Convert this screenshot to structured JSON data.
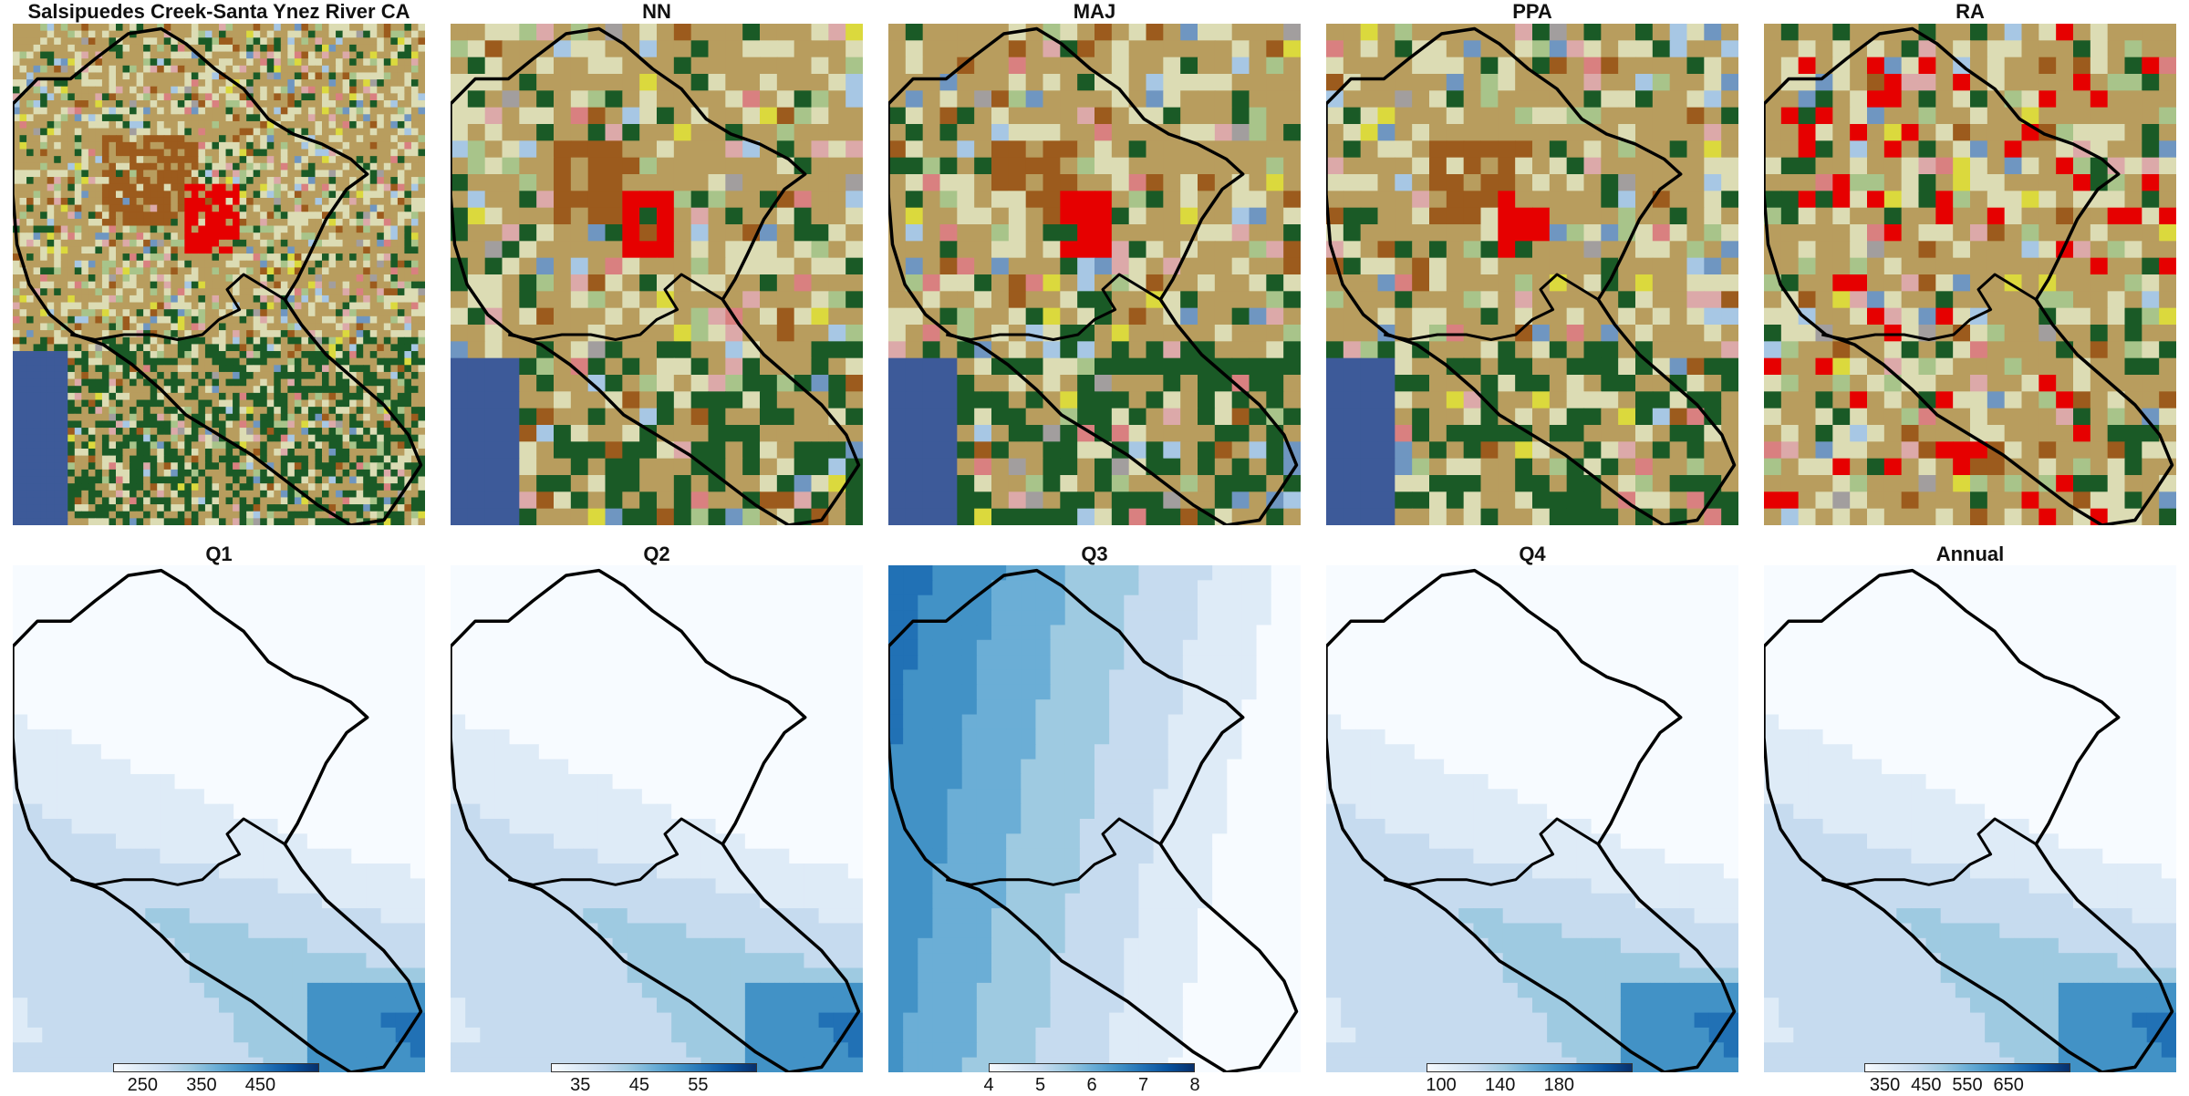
{
  "figure": {
    "location_title": "Salsipuedes Creek-Santa Ynez River CA",
    "landcover_panels": [
      {
        "id": "original",
        "title": "Salsipuedes Creek-Santa Ynez River CA",
        "seed": 11,
        "scale": "fine"
      },
      {
        "id": "nn",
        "title": "NN",
        "seed": 23,
        "scale": "coarse"
      },
      {
        "id": "maj",
        "title": "MAJ",
        "seed": 37,
        "scale": "coarse"
      },
      {
        "id": "ppa",
        "title": "PPA",
        "seed": 41,
        "scale": "coarse"
      },
      {
        "id": "ra",
        "title": "RA",
        "seed": 53,
        "scale": "coarse"
      }
    ],
    "runoff_panels": [
      {
        "id": "q1",
        "title": "Q1",
        "ticks": [
          "250",
          "350",
          "450"
        ],
        "range": [
          200,
          550
        ]
      },
      {
        "id": "q2",
        "title": "Q2",
        "ticks": [
          "35",
          "45",
          "55"
        ],
        "range": [
          30,
          65
        ]
      },
      {
        "id": "q3",
        "title": "Q3",
        "ticks": [
          "4",
          "5",
          "6",
          "7",
          "8"
        ],
        "range": [
          4,
          8
        ]
      },
      {
        "id": "q4",
        "title": "Q4",
        "ticks": [
          "100",
          "140",
          "180"
        ],
        "range": [
          90,
          230
        ]
      },
      {
        "id": "annual",
        "title": "Annual",
        "ticks": [
          "350",
          "450",
          "550",
          "650"
        ],
        "range": [
          300,
          800
        ]
      }
    ],
    "landcover_colors": {
      "water": "#3d5a99",
      "developed_high": "#e60000",
      "developed_very_high": "#a50000",
      "developed_low": "#dca9a9",
      "developed_med": "#d98080",
      "barren": "#a29e9e",
      "forest": "#1a5a26",
      "shrub": "#b89d5e",
      "grassland": "#dcdcb4",
      "pasture": "#a8c48a",
      "cropland": "#9c5b1d",
      "wetland": "#6f96c1",
      "wetland_herb": "#a7c7e4",
      "orchard": "#dbd93d"
    },
    "blues_palette": [
      "#f7fbff",
      "#deebf7",
      "#c6dbef",
      "#9ecae1",
      "#6baed6",
      "#4292c6",
      "#2171b5",
      "#08519c",
      "#08306b"
    ]
  }
}
